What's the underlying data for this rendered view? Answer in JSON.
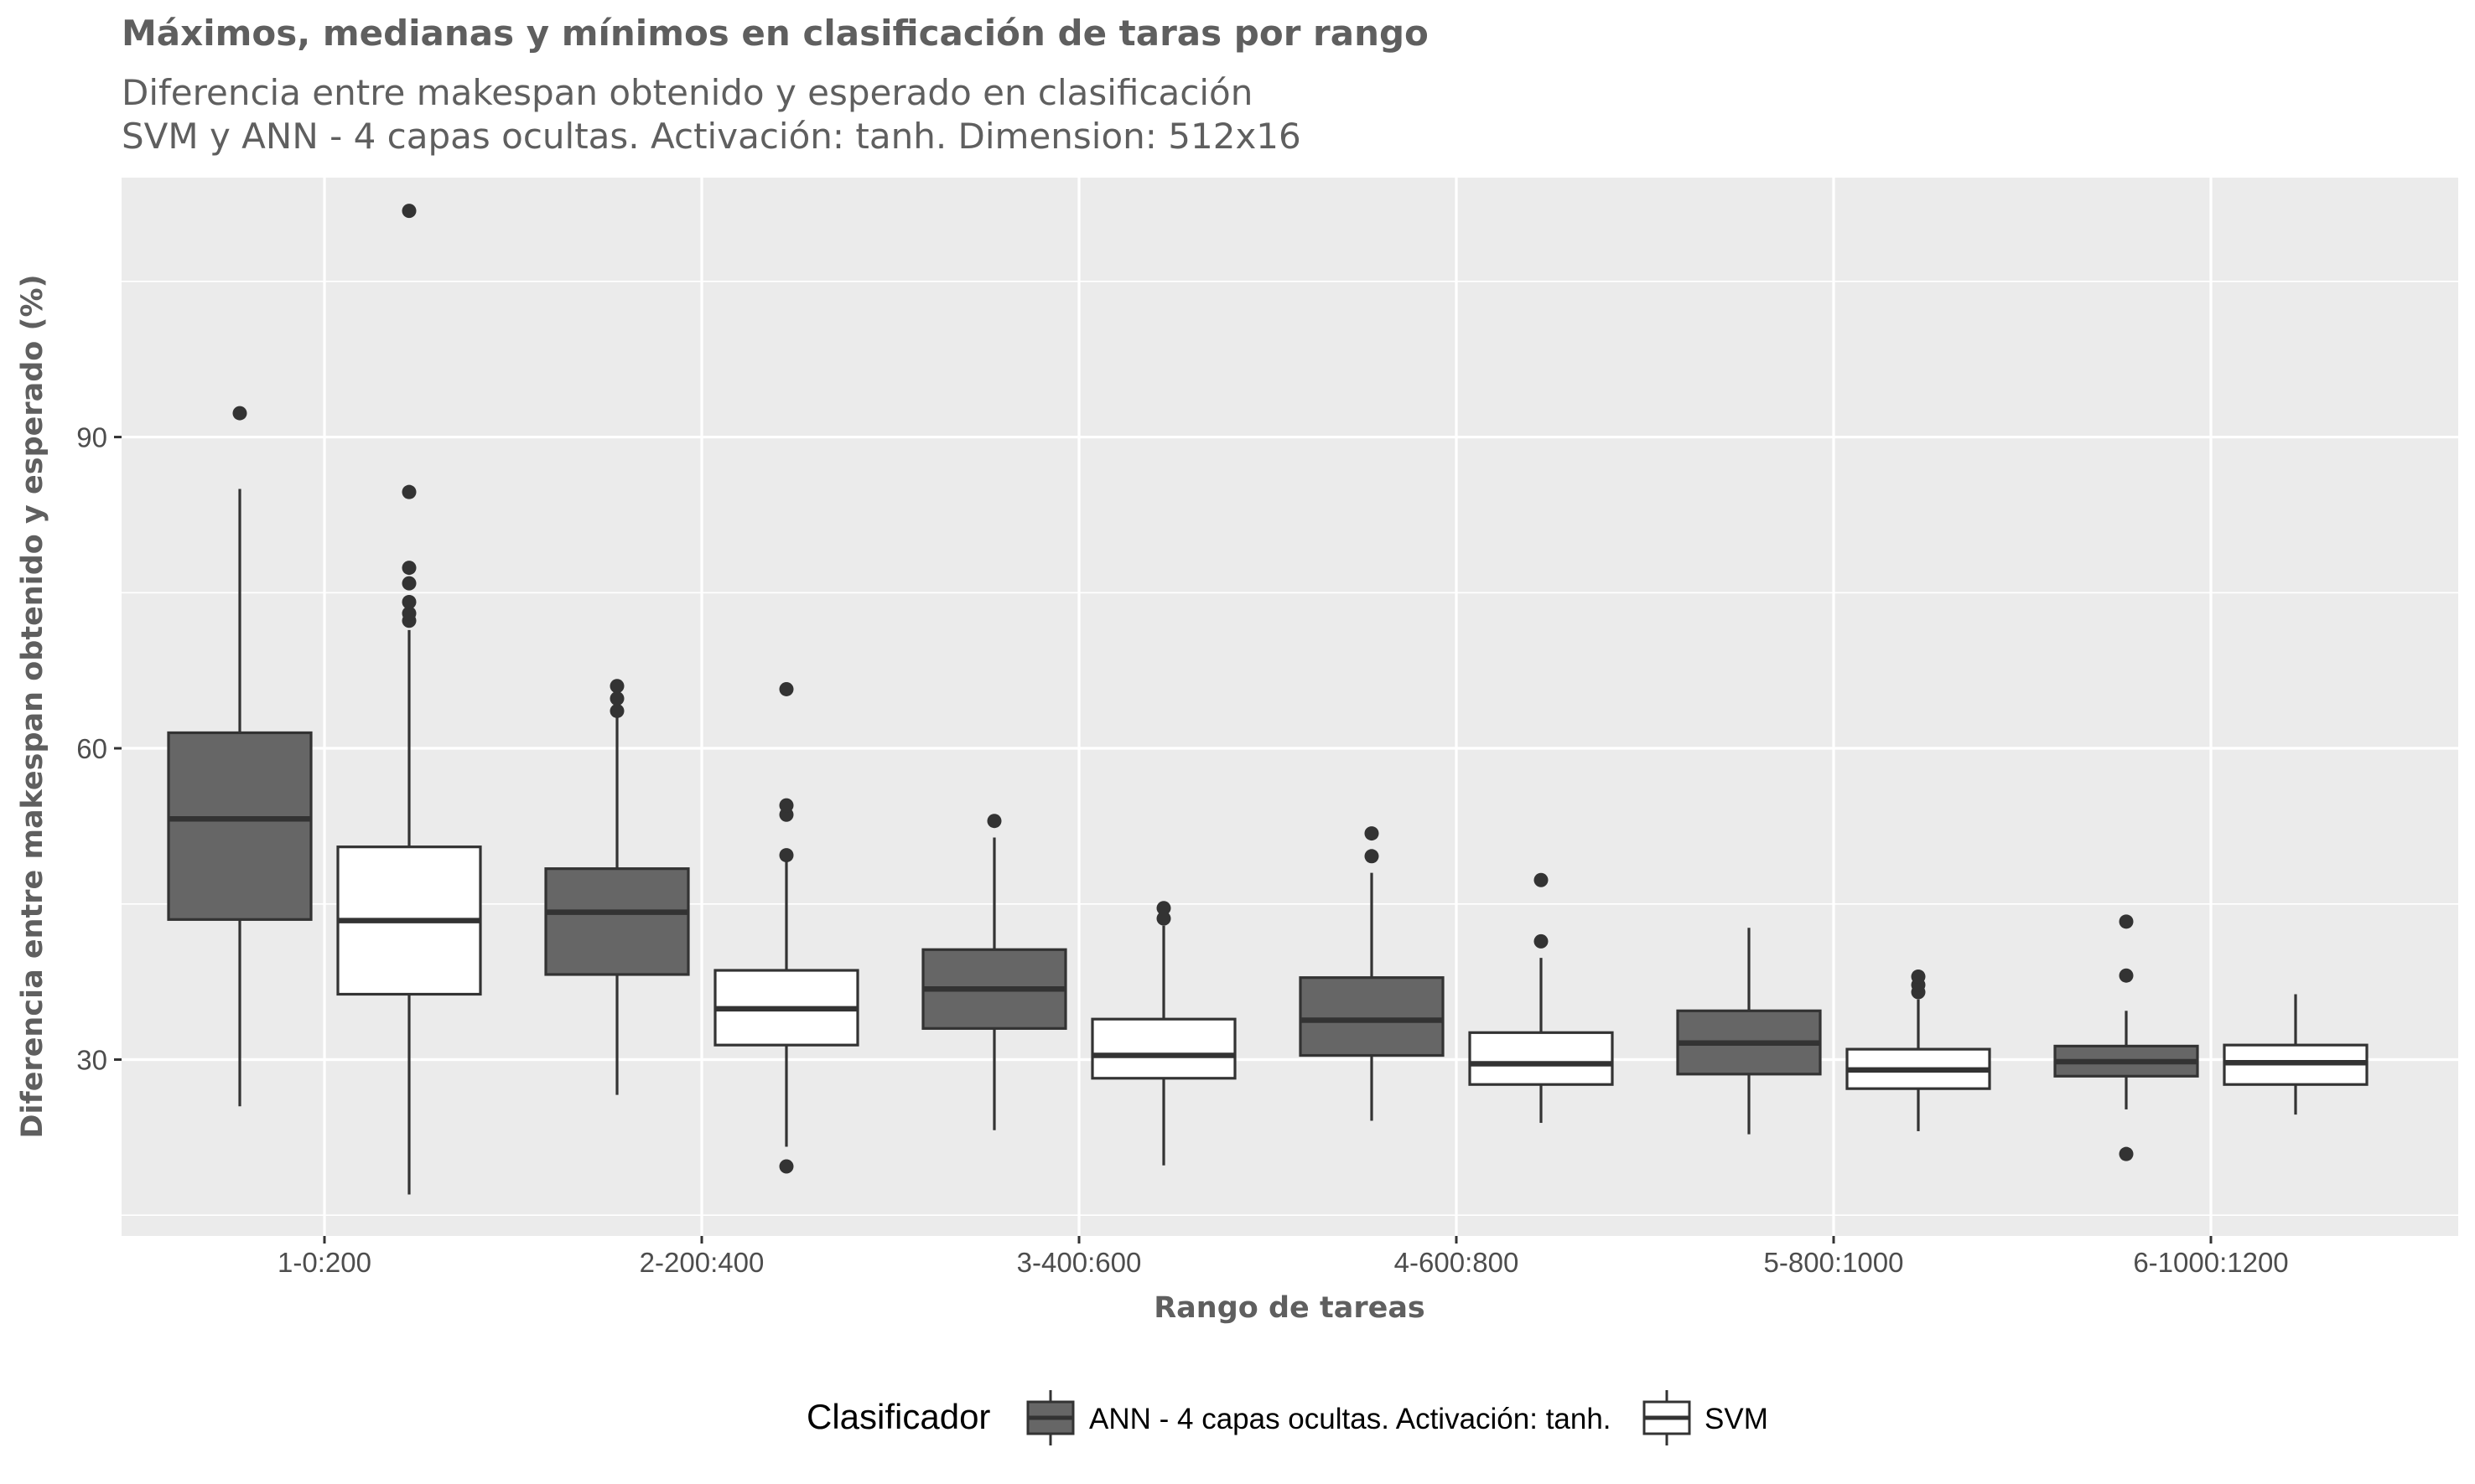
{
  "chart_data": {
    "type": "boxplot",
    "title": "Máximos, medianas y mínimos en clasificación de taras por rango",
    "subtitle_lines": [
      "Diferencia entre makespan obtenido y esperado en clasificación",
      "SVM y ANN - 4 capas ocultas. Activación: tanh. Dimension: 512x16"
    ],
    "xlabel": "Rango de tareas",
    "ylabel": "Diferencia entre makespan obtenido y esperado (%)",
    "ylim": [
      13,
      115
    ],
    "y_ticks": [
      30,
      60,
      90
    ],
    "grid": true,
    "legend": {
      "title": "Clasificador",
      "position": "bottom"
    },
    "categories": [
      "1-0:200",
      "2-200:400",
      "3-400:600",
      "4-600:800",
      "5-800:1000",
      "6-1000:1200"
    ],
    "series": [
      {
        "name": "ANN - 4 capas ocultas. Activación: tanh.",
        "color": "#666666",
        "boxes": [
          {
            "whisker_low": 25.5,
            "q1": 43.5,
            "median": 53.2,
            "q3": 61.5,
            "whisker_high": 85.0,
            "outliers": [
              92.3
            ]
          },
          {
            "whisker_low": 26.6,
            "q1": 38.2,
            "median": 44.2,
            "q3": 48.4,
            "whisker_high": 63.0,
            "outliers": [
              63.6,
              64.8,
              66.0
            ]
          },
          {
            "whisker_low": 23.2,
            "q1": 33.0,
            "median": 36.8,
            "q3": 40.6,
            "whisker_high": 51.4,
            "outliers": [
              53.0
            ]
          },
          {
            "whisker_low": 24.1,
            "q1": 30.4,
            "median": 33.8,
            "q3": 37.9,
            "whisker_high": 48.0,
            "outliers": [
              49.6,
              51.8
            ]
          },
          {
            "whisker_low": 22.8,
            "q1": 28.6,
            "median": 31.6,
            "q3": 34.7,
            "whisker_high": 42.7,
            "outliers": []
          },
          {
            "whisker_low": 25.2,
            "q1": 28.4,
            "median": 29.8,
            "q3": 31.3,
            "whisker_high": 34.7,
            "outliers": [
              20.9,
              38.1,
              43.3
            ]
          }
        ]
      },
      {
        "name": "SVM",
        "color": "#ffffff",
        "boxes": [
          {
            "whisker_low": 17.0,
            "q1": 36.3,
            "median": 43.4,
            "q3": 50.5,
            "whisker_high": 71.4,
            "outliers": [
              72.3,
              73.0,
              74.1,
              75.9,
              77.4,
              84.7,
              111.8
            ]
          },
          {
            "whisker_low": 21.6,
            "q1": 31.4,
            "median": 34.9,
            "q3": 38.6,
            "whisker_high": 49.2,
            "outliers": [
              19.7,
              49.7,
              53.6,
              54.5,
              65.7
            ]
          },
          {
            "whisker_low": 19.8,
            "q1": 28.2,
            "median": 30.4,
            "q3": 33.9,
            "whisker_high": 42.9,
            "outliers": [
              43.6,
              44.6
            ]
          },
          {
            "whisker_low": 23.9,
            "q1": 27.6,
            "median": 29.6,
            "q3": 32.6,
            "whisker_high": 39.8,
            "outliers": [
              41.4,
              47.3
            ]
          },
          {
            "whisker_low": 23.1,
            "q1": 27.2,
            "median": 29.0,
            "q3": 31.0,
            "whisker_high": 35.8,
            "outliers": [
              36.5,
              37.2,
              38.0
            ]
          },
          {
            "whisker_low": 24.7,
            "q1": 27.6,
            "median": 29.7,
            "q3": 31.4,
            "whisker_high": 36.3,
            "outliers": []
          }
        ]
      }
    ]
  }
}
